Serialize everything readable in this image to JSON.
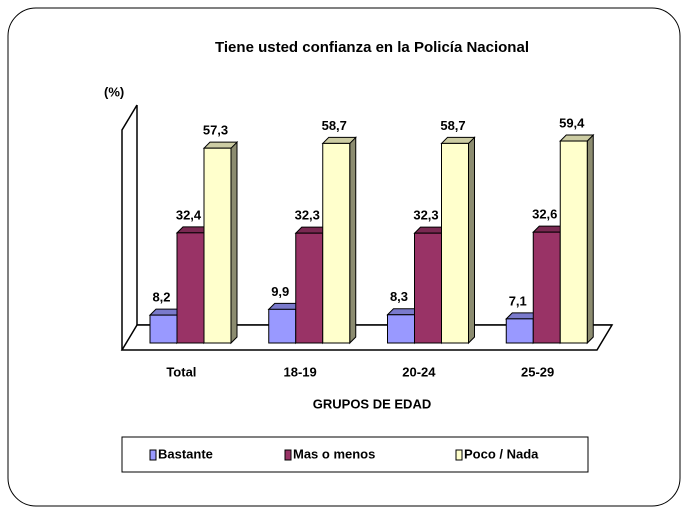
{
  "chart_data": {
    "type": "bar3d",
    "title": "Tiene usted confianza en la Policía Nacional",
    "y_label": "(%)",
    "x_label": "GRUPOS DE EDAD",
    "categories": [
      "Total",
      "18-19",
      "20-24",
      "25-29"
    ],
    "series": [
      {
        "name": "Bastante",
        "color": "#9999ff",
        "values": [
          8.2,
          9.9,
          8.3,
          7.1
        ],
        "value_labels": [
          "8,2",
          "9,9",
          "8,3",
          "7,1"
        ]
      },
      {
        "name": "Mas o menos",
        "color": "#993366",
        "values": [
          32.4,
          32.3,
          32.3,
          32.6
        ],
        "value_labels": [
          "32,4",
          "32,3",
          "32,3",
          "32,6"
        ]
      },
      {
        "name": "Poco / Nada",
        "color": "#ffffcc",
        "values": [
          57.3,
          58.7,
          58.7,
          59.4
        ],
        "value_labels": [
          "57,3",
          "58,7",
          "58,7",
          "59,4"
        ]
      }
    ],
    "ylim": [
      0,
      70
    ],
    "legend": "bottom"
  }
}
